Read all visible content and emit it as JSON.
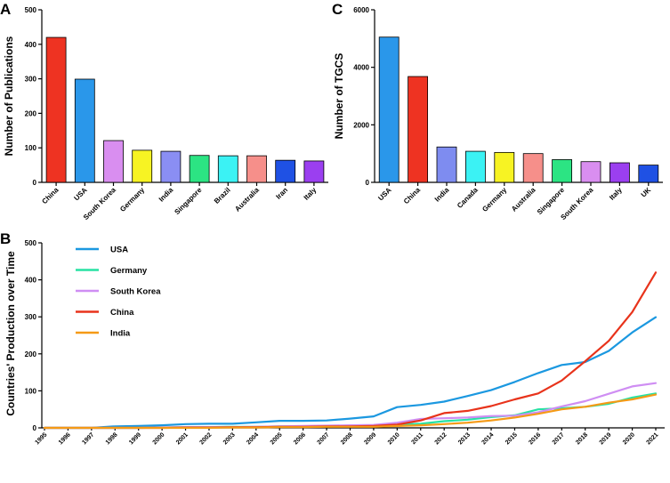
{
  "chart_data": [
    {
      "panel": "A",
      "type": "bar",
      "title": "",
      "xlabel": "",
      "ylabel": "Number of Publications",
      "ylim": [
        0,
        500
      ],
      "yticks": [
        0,
        100,
        200,
        300,
        400,
        500
      ],
      "categories": [
        "China",
        "USA",
        "South Korea",
        "Germany",
        "India",
        "Singapore",
        "Brazil",
        "Australia",
        "Iran",
        "Italy"
      ],
      "values": [
        420,
        299,
        121,
        93,
        90,
        78,
        77,
        77,
        64,
        62
      ],
      "colors": [
        "#ee3322",
        "#2a97ea",
        "#d98ef0",
        "#f7f323",
        "#8a8ef3",
        "#2ce483",
        "#3bf2f4",
        "#f68f8a",
        "#1f51e4",
        "#9b3ff0"
      ]
    },
    {
      "panel": "C",
      "type": "bar",
      "title": "",
      "xlabel": "",
      "ylabel": "Number of TGCS",
      "ylim": [
        0,
        6000
      ],
      "yticks": [
        0,
        2000,
        4000,
        6000
      ],
      "categories": [
        "USA",
        "China",
        "India",
        "Canada",
        "Germany",
        "Australia",
        "Singapore",
        "South Korea",
        "Italy",
        "UK"
      ],
      "values": [
        5050,
        3680,
        1230,
        1080,
        1040,
        1000,
        790,
        720,
        680,
        600
      ],
      "colors": [
        "#2a97ea",
        "#ee3322",
        "#7e8cf0",
        "#3bf2f4",
        "#f7f323",
        "#f68f8a",
        "#2ce483",
        "#d98ef0",
        "#9b3ff0",
        "#1f51e4"
      ]
    },
    {
      "panel": "B",
      "type": "line",
      "title": "",
      "xlabel": "",
      "ylabel": "Countries' Production over Time",
      "ylim": [
        0,
        500
      ],
      "yticks": [
        0,
        100,
        200,
        300,
        400,
        500
      ],
      "x": [
        "1995",
        "1996",
        "1997",
        "1998",
        "1999",
        "2000",
        "2001",
        "2002",
        "2003",
        "2004",
        "2005",
        "2006",
        "2007",
        "2008",
        "2009",
        "2010",
        "2011",
        "2012",
        "2013",
        "2014",
        "2015",
        "2016",
        "2017",
        "2018",
        "2019",
        "2020",
        "2021"
      ],
      "legend_position": "top-left",
      "series": [
        {
          "name": "USA",
          "color": "#1b98e0",
          "values": [
            0,
            0,
            0,
            4,
            5,
            7,
            10,
            11,
            11,
            15,
            19,
            19,
            20,
            25,
            31,
            56,
            62,
            71,
            86,
            102,
            124,
            148,
            170,
            178,
            208,
            258,
            299
          ]
        },
        {
          "name": "Germany",
          "color": "#27e2a3",
          "values": [
            0,
            0,
            0,
            0,
            0,
            1,
            2,
            2,
            3,
            3,
            4,
            4,
            5,
            6,
            7,
            9,
            11,
            18,
            22,
            29,
            34,
            50,
            53,
            57,
            65,
            82,
            93
          ]
        },
        {
          "name": "South Korea",
          "color": "#cf8ef3",
          "values": [
            0,
            0,
            0,
            0,
            0,
            1,
            2,
            2,
            2,
            3,
            4,
            5,
            6,
            7,
            8,
            14,
            24,
            26,
            28,
            32,
            33,
            42,
            58,
            72,
            92,
            112,
            121
          ]
        },
        {
          "name": "China",
          "color": "#e8331b",
          "values": [
            0,
            0,
            0,
            0,
            0,
            0,
            1,
            1,
            2,
            2,
            3,
            3,
            4,
            4,
            5,
            9,
            20,
            40,
            46,
            59,
            77,
            93,
            128,
            180,
            235,
            313,
            420
          ]
        },
        {
          "name": "India",
          "color": "#f59a16",
          "values": [
            0,
            0,
            0,
            0,
            0,
            0,
            0,
            0,
            1,
            1,
            2,
            2,
            3,
            3,
            3,
            5,
            7,
            10,
            14,
            20,
            28,
            38,
            50,
            57,
            68,
            77,
            90
          ]
        }
      ]
    }
  ]
}
